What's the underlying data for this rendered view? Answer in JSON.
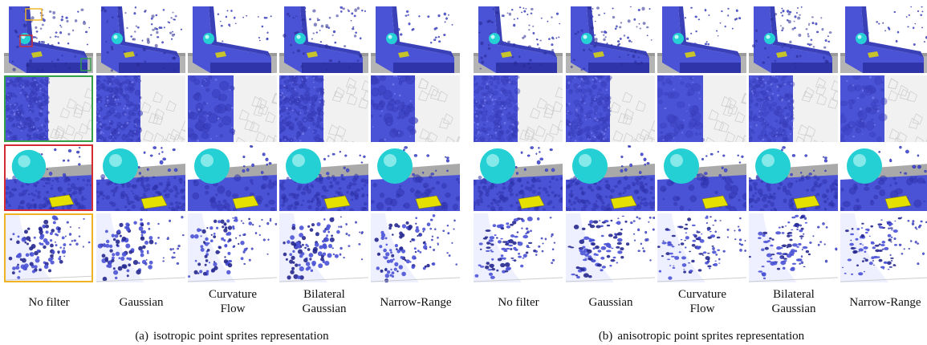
{
  "figure": {
    "panels": [
      {
        "id": "a",
        "tag": "(a)",
        "caption": "isotropic point sprites representation",
        "columns": [
          "No filter",
          "Gaussian",
          "Curvature\nFlow",
          "Bilateral\nGaussian",
          "Narrow-Range"
        ]
      },
      {
        "id": "b",
        "tag": "(b)",
        "caption": "anisotropic point sprites representation",
        "columns": [
          "No filter",
          "Gaussian",
          "Curvature\nFlow",
          "Bilateral\nGaussian",
          "Narrow-Range"
        ]
      }
    ],
    "rows": [
      "overview",
      "zoom-wall",
      "zoom-sphere",
      "zoom-splash"
    ],
    "colors": {
      "fluid": "#4a52d6",
      "fluid_dark": "#26288f",
      "sphere": "#25d0d4",
      "floor": "#b4b4b4",
      "highlight_green": "#33a04a",
      "highlight_red": "#d42a32",
      "highlight_orange": "#f0b323",
      "yellow_object": "#e6e000"
    }
  }
}
